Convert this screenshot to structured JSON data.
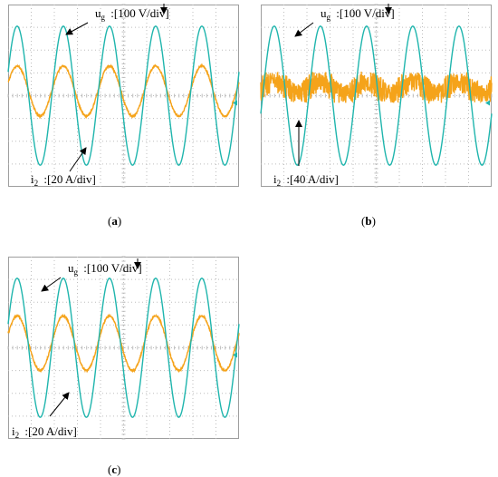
{
  "colors": {
    "background": "#ffffff",
    "grid": "#bdbdbd",
    "border": "#9e9e9e",
    "ug_trace": "#1fb5ad",
    "i2_trace": "#f5a31a",
    "marker": "#1fb5ad",
    "text": "#000000"
  },
  "chart_data": [
    {
      "type": "line",
      "panel": "a",
      "caption": "a",
      "grid": true,
      "divisions": {
        "x": 10,
        "y": 8
      },
      "ylim_div": [
        -4,
        4
      ],
      "xlim_div": [
        0,
        10
      ],
      "series": [
        {
          "name": "u",
          "subscript": "g",
          "scale": ":[100 V/div]",
          "type": "sine",
          "amplitude_div": 3.05,
          "offset_div": 0,
          "cycles": 5.0,
          "phase_deg": 20,
          "noise": 0
        },
        {
          "name": "i",
          "subscript": "2",
          "scale": ":[20 A/div]",
          "type": "sine",
          "amplitude_div": 1.1,
          "offset_div": 0.2,
          "cycles": 5.0,
          "phase_deg": 20,
          "noise": 0.05
        }
      ],
      "annotations": [
        {
          "series": 0,
          "label_pos": "top-left"
        },
        {
          "series": 1,
          "label_pos": "bottom-left"
        }
      ]
    },
    {
      "type": "line",
      "panel": "b",
      "caption": "b",
      "grid": true,
      "divisions": {
        "x": 10,
        "y": 8
      },
      "ylim_div": [
        -4,
        4
      ],
      "xlim_div": [
        0,
        10
      ],
      "series": [
        {
          "name": "u",
          "subscript": "g",
          "scale": ":[100 V/div]",
          "type": "sine",
          "amplitude_div": 3.05,
          "offset_div": 0,
          "cycles": 5.0,
          "phase_deg": -15,
          "noise": 0
        },
        {
          "name": "i",
          "subscript": "2",
          "scale": ":[40 A/div]",
          "type": "sine",
          "amplitude_div": 0.25,
          "offset_div": 0.35,
          "cycles": 5.0,
          "phase_deg": -15,
          "noise": 0.6
        }
      ],
      "annotations": [
        {
          "series": 0,
          "label_pos": "top-left"
        },
        {
          "series": 1,
          "label_pos": "bottom-left"
        }
      ]
    },
    {
      "type": "line",
      "panel": "c",
      "caption": "c",
      "grid": true,
      "divisions": {
        "x": 10,
        "y": 8
      },
      "ylim_div": [
        -4,
        4
      ],
      "xlim_div": [
        0,
        10
      ],
      "series": [
        {
          "name": "u",
          "subscript": "g",
          "scale": ":[100 V/div]",
          "type": "sine",
          "amplitude_div": 3.05,
          "offset_div": 0,
          "cycles": 5.0,
          "phase_deg": 20,
          "noise": 0
        },
        {
          "name": "i",
          "subscript": "2",
          "scale": ":[20 A/div]",
          "type": "sine",
          "amplitude_div": 1.2,
          "offset_div": 0.2,
          "cycles": 5.0,
          "phase_deg": 20,
          "noise": 0.05
        }
      ],
      "annotations": [
        {
          "series": 0,
          "label_pos": "top-left"
        },
        {
          "series": 1,
          "label_pos": "bottom-left"
        }
      ]
    }
  ],
  "captions": {
    "a": "a",
    "b": "b",
    "c": "c"
  }
}
